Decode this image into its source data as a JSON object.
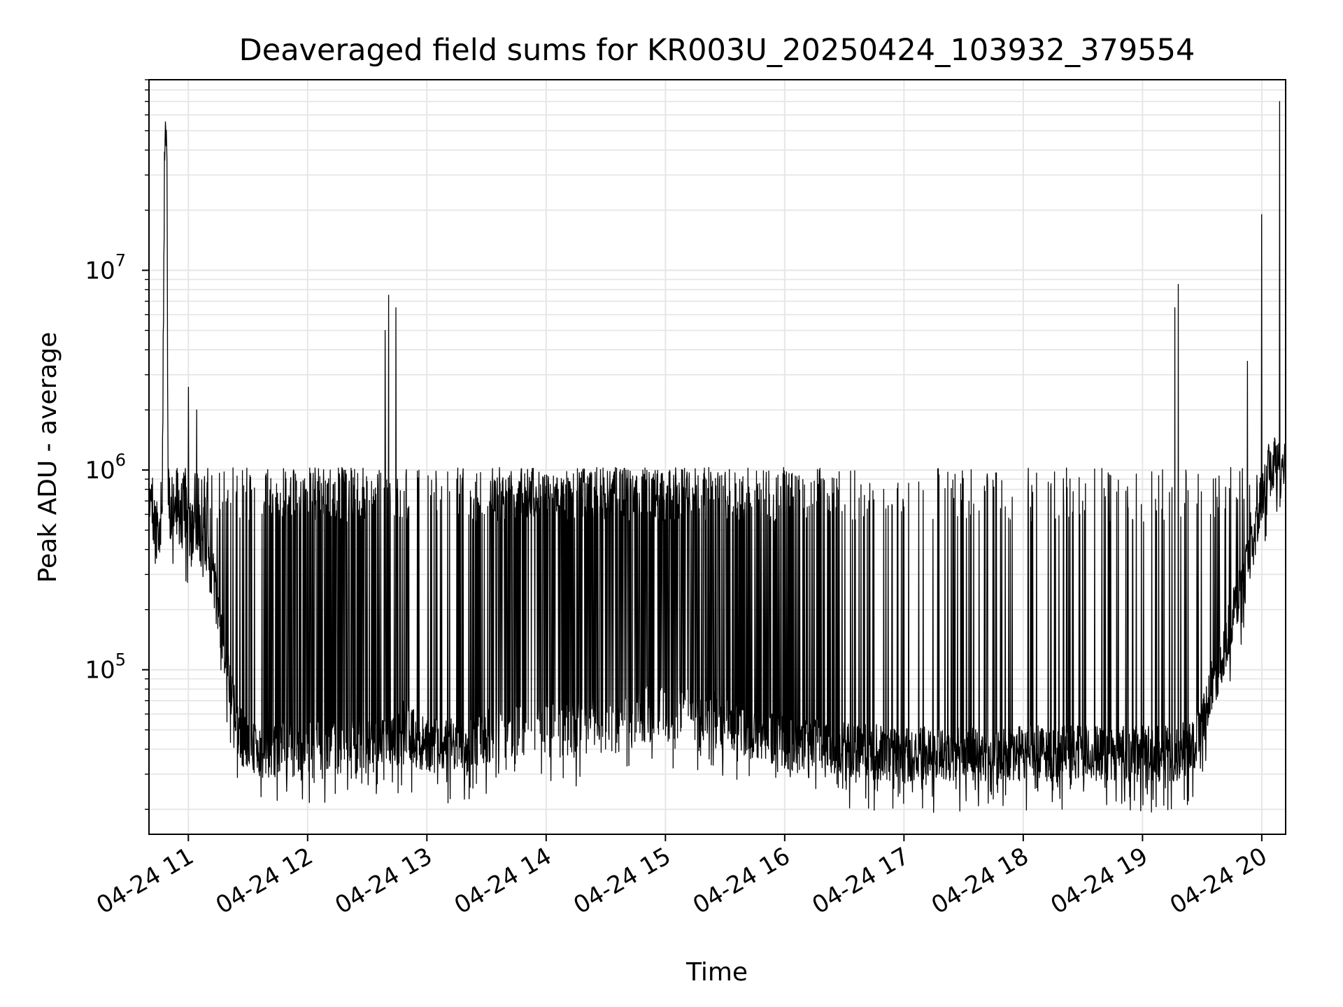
{
  "chart_data": {
    "type": "line",
    "title": "Deaveraged field sums for KR003U_20250424_103932_379554",
    "xlabel": "Time",
    "ylabel": "Peak ADU - average",
    "y_scale": "log",
    "ylim": [
      15000,
      90000000
    ],
    "xlim_hours": [
      10.67,
      20.2
    ],
    "grid": true,
    "line_color": "#000000",
    "x_ticks": [
      {
        "hour": 11,
        "label": "04-24 11"
      },
      {
        "hour": 12,
        "label": "04-24 12"
      },
      {
        "hour": 13,
        "label": "04-24 13"
      },
      {
        "hour": 14,
        "label": "04-24 14"
      },
      {
        "hour": 15,
        "label": "04-24 15"
      },
      {
        "hour": 16,
        "label": "04-24 16"
      },
      {
        "hour": 17,
        "label": "04-24 17"
      },
      {
        "hour": 18,
        "label": "04-24 18"
      },
      {
        "hour": 19,
        "label": "04-24 19"
      },
      {
        "hour": 20,
        "label": "04-24 20"
      }
    ],
    "y_ticks": [
      {
        "value": 100000,
        "base": "10",
        "exp": "5"
      },
      {
        "value": 1000000,
        "base": "10",
        "exp": "6"
      },
      {
        "value": 10000000,
        "base": "10",
        "exp": "7"
      }
    ],
    "series": [
      {
        "x_hours": [
          10.67,
          10.7,
          10.74,
          10.78,
          10.8,
          10.81,
          10.82,
          10.83,
          10.84,
          10.86,
          10.9,
          10.95,
          11.0,
          11.05,
          11.1,
          11.15,
          11.2,
          11.25,
          11.3,
          11.35,
          11.4,
          11.45,
          11.5,
          11.55,
          11.6,
          11.7,
          11.8,
          11.9,
          12.0,
          12.1,
          12.2,
          12.3,
          12.4,
          12.5,
          12.6,
          12.65,
          12.7,
          12.72,
          12.75,
          12.8,
          12.9,
          13.0,
          13.1,
          13.2,
          13.3,
          13.4,
          13.5,
          13.6,
          13.7,
          13.8,
          13.9,
          14.0,
          14.1,
          14.2,
          14.3,
          14.4,
          14.5,
          14.6,
          14.7,
          14.8,
          14.9,
          15.0,
          15.1,
          15.2,
          15.3,
          15.4,
          15.5,
          15.6,
          15.7,
          15.8,
          15.9,
          16.0,
          16.1,
          16.2,
          16.3,
          16.4,
          16.5,
          16.6,
          16.7,
          16.8,
          16.9,
          17.0,
          17.1,
          17.2,
          17.3,
          17.4,
          17.5,
          17.6,
          17.7,
          17.8,
          17.9,
          18.0,
          18.1,
          18.2,
          18.3,
          18.4,
          18.5,
          18.6,
          18.7,
          18.8,
          18.9,
          19.0,
          19.1,
          19.2,
          19.25,
          19.28,
          19.3,
          19.35,
          19.4,
          19.45,
          19.5,
          19.55,
          19.6,
          19.65,
          19.7,
          19.75,
          19.8,
          19.85,
          19.9,
          19.93,
          19.95,
          20.0,
          20.05,
          20.1,
          20.12,
          20.14,
          20.16,
          20.18
        ],
        "base": [
          700000,
          600000,
          450000,
          550000,
          32000000,
          48000000,
          40000000,
          900000,
          550000,
          600000,
          600000,
          550000,
          500000,
          480000,
          450000,
          380000,
          300000,
          200000,
          130000,
          80000,
          55000,
          45000,
          42000,
          40000,
          40000,
          40000,
          40000,
          40000,
          42000,
          42000,
          42000,
          42000,
          42000,
          42000,
          42000,
          42000,
          42000,
          42000,
          42000,
          55000,
          45000,
          42000,
          42000,
          42000,
          42000,
          44000,
          46000,
          48000,
          50000,
          50000,
          50000,
          50000,
          50000,
          50000,
          52000,
          52000,
          52000,
          52000,
          55000,
          60000,
          60000,
          60000,
          62000,
          62000,
          60000,
          58000,
          55000,
          52000,
          50000,
          48000,
          46000,
          44000,
          42000,
          42000,
          42000,
          42000,
          40000,
          40000,
          40000,
          38000,
          38000,
          38000,
          38000,
          38000,
          38000,
          38000,
          38000,
          38000,
          38000,
          38000,
          38000,
          38000,
          38000,
          38000,
          38000,
          38000,
          38000,
          38000,
          38000,
          38000,
          38000,
          38000,
          38000,
          38000,
          38000,
          38000,
          38000,
          40000,
          42000,
          45000,
          55000,
          70000,
          90000,
          110000,
          140000,
          180000,
          230000,
          290000,
          360000,
          450000,
          500000,
          700000,
          1000000,
          1100000,
          1050000,
          1000000,
          950000,
          900000,
          900000,
          55000000,
          60000000,
          1200000
        ],
        "spike_prob": [
          0.2,
          0.2,
          0.2,
          0.2,
          0,
          0,
          0,
          0.2,
          0.35,
          0.35,
          0.35,
          0.35,
          0.35,
          0.35,
          0.35,
          0.35,
          0.35,
          0.35,
          0.3,
          0.3,
          0.2,
          0.15,
          0.15,
          0.15,
          0.15,
          0.35,
          0.5,
          0.55,
          0.55,
          0.5,
          0.5,
          0.5,
          0.35,
          0.3,
          0.3,
          0.3,
          0.3,
          0.3,
          0.3,
          0.2,
          0.1,
          0.1,
          0.12,
          0.15,
          0.2,
          0.3,
          0.45,
          0.55,
          0.6,
          0.65,
          0.65,
          0.65,
          0.65,
          0.65,
          0.65,
          0.65,
          0.65,
          0.6,
          0.6,
          0.6,
          0.6,
          0.6,
          0.6,
          0.6,
          0.55,
          0.5,
          0.45,
          0.4,
          0.4,
          0.4,
          0.35,
          0.35,
          0.3,
          0.25,
          0.25,
          0.25,
          0.22,
          0.2,
          0.2,
          0.15,
          0.12,
          0.1,
          0.1,
          0.1,
          0.1,
          0.1,
          0.1,
          0.1,
          0.1,
          0.1,
          0.1,
          0.1,
          0.1,
          0.1,
          0.1,
          0.1,
          0.1,
          0.1,
          0.1,
          0.1,
          0.1,
          0.1,
          0.1,
          0.12,
          0.12,
          0.12,
          0.12,
          0.12,
          0.12,
          0.12,
          0.12,
          0.12,
          0.12,
          0.12,
          0.12,
          0.12,
          0.12,
          0.12,
          0.12,
          0.12,
          0.12,
          0.12,
          0.12,
          0.12,
          0.12,
          0.12,
          0.12,
          0,
          0,
          0
        ],
        "peaks": [
          {
            "hour": 11.0,
            "value": 2600000
          },
          {
            "hour": 11.07,
            "value": 2000000
          },
          {
            "hour": 12.65,
            "value": 5000000
          },
          {
            "hour": 12.68,
            "value": 7500000
          },
          {
            "hour": 12.74,
            "value": 6500000
          },
          {
            "hour": 19.27,
            "value": 6500000
          },
          {
            "hour": 19.3,
            "value": 8500000
          },
          {
            "hour": 19.88,
            "value": 3500000
          },
          {
            "hour": 20.0,
            "value": 19000000
          },
          {
            "hour": 20.15,
            "value": 70000000
          }
        ]
      }
    ]
  }
}
